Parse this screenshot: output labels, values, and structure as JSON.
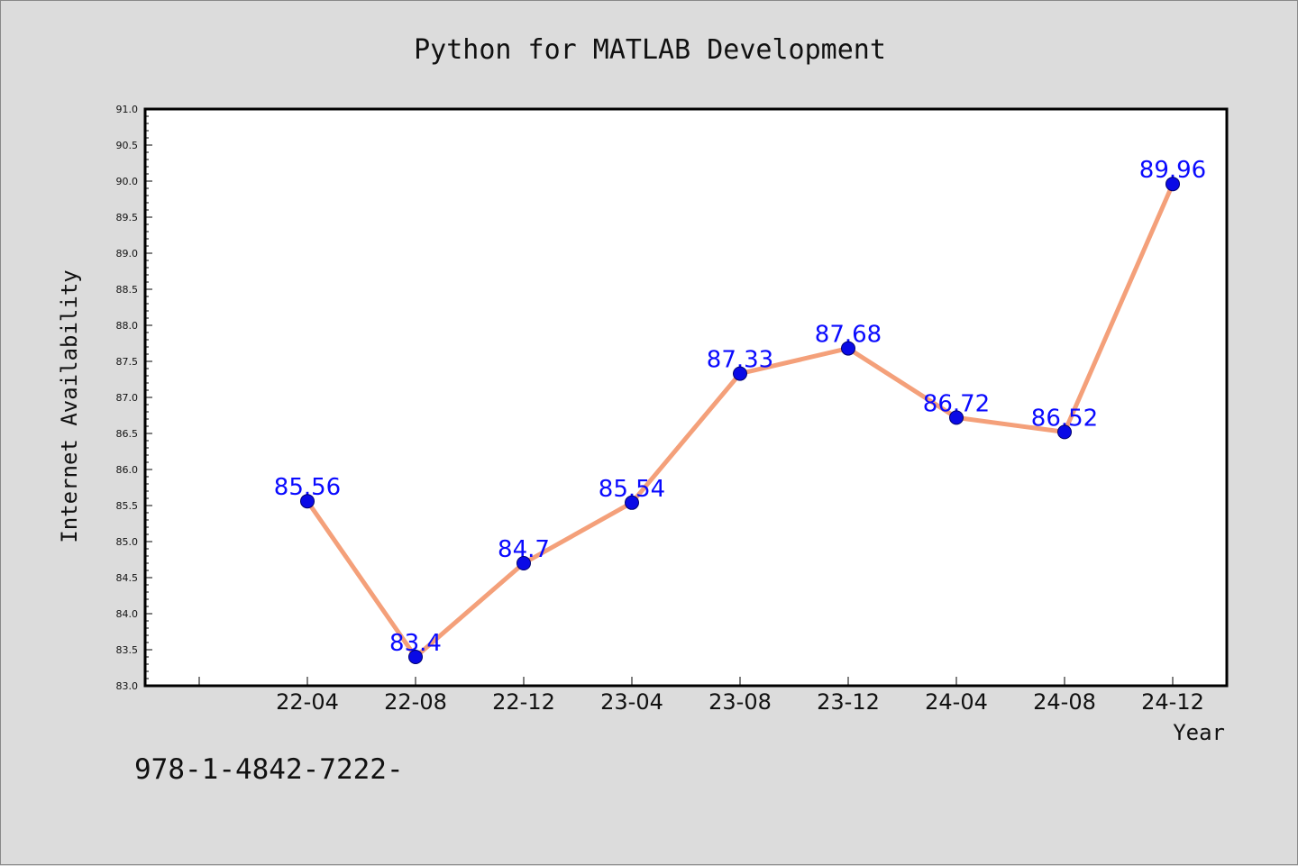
{
  "chart_data": {
    "type": "line",
    "title": "Python for MATLAB Development",
    "xlabel": "Year",
    "ylabel": "Internet Availability",
    "categories": [
      "22-04",
      "22-08",
      "22-12",
      "23-04",
      "23-08",
      "23-12",
      "24-04",
      "24-08",
      "24-12"
    ],
    "series": [
      {
        "values": [
          85.56,
          83.4,
          84.7,
          85.54,
          87.33,
          87.68,
          86.72,
          86.52,
          89.96
        ]
      }
    ],
    "data_labels": [
      "85.56",
      "83.4",
      "84.7",
      "85.54",
      "87.33",
      "87.68",
      "86.72",
      "86.52",
      "89.96"
    ],
    "ylim": [
      83.0,
      91.0
    ],
    "yticks": [
      "83.0",
      "83.5",
      "84.0",
      "84.5",
      "85.0",
      "85.5",
      "86.0",
      "86.5",
      "87.0",
      "87.5",
      "88.0",
      "88.5",
      "89.0",
      "89.5",
      "90.0",
      "90.5",
      "91.0"
    ],
    "grid": false,
    "colors": {
      "line": "#f4a07a",
      "marker": "#0a0ae6",
      "label": "#0a0aff",
      "background": "#dcdcdc",
      "plot_background": "#ffffff"
    }
  },
  "footer_text": "978-1-4842-7222-"
}
